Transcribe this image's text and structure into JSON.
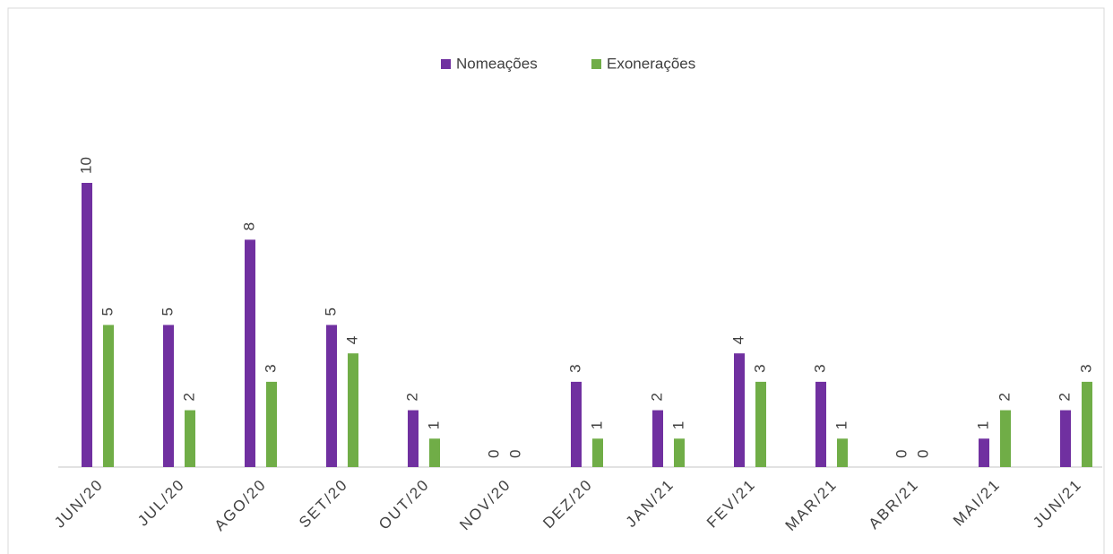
{
  "chart_data": {
    "type": "bar",
    "categories": [
      "JUN/20",
      "JUL/20",
      "AGO/20",
      "SET/20",
      "OUT/20",
      "NOV/20",
      "DEZ/20",
      "JAN/21",
      "FEV/21",
      "MAR/21",
      "ABR/21",
      "MAI/21",
      "JUN/21"
    ],
    "series": [
      {
        "name": "Nomeações",
        "color": "#7030a0",
        "values": [
          10,
          5,
          8,
          5,
          2,
          0,
          3,
          2,
          4,
          3,
          0,
          1,
          2
        ]
      },
      {
        "name": "Exonerações",
        "color": "#70ad47",
        "values": [
          5,
          2,
          3,
          4,
          1,
          0,
          1,
          1,
          3,
          1,
          0,
          2,
          3
        ]
      }
    ],
    "ylim": [
      0,
      10
    ],
    "legend": "top"
  }
}
